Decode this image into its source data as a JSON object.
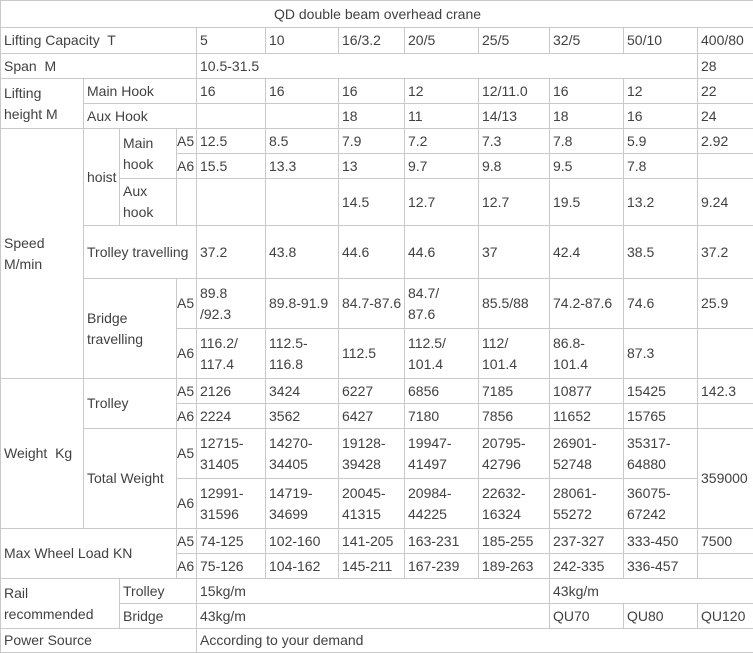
{
  "title": "QD double beam overhead crane",
  "colors": {
    "border": "#c9c9c9",
    "text": "#414141",
    "background": "#ffffff"
  },
  "grid": [
    [
      {
        "t": "QD double beam overhead crane",
        "cs": 12,
        "c": 1,
        "n": "table-title"
      }
    ],
    [
      {
        "t": "Lifting Capacity  T",
        "cs": 4,
        "n": "row-label-lifting-capacity"
      },
      {
        "t": "5",
        "n": "capacity-col-header"
      },
      {
        "t": "10",
        "n": "capacity-col-header"
      },
      {
        "t": "16/3.2",
        "n": "capacity-col-header"
      },
      {
        "t": "20/5",
        "n": "capacity-col-header"
      },
      {
        "t": "25/5",
        "n": "capacity-col-header"
      },
      {
        "t": "32/5",
        "n": "capacity-col-header"
      },
      {
        "t": "50/10",
        "n": "capacity-col-header"
      },
      {
        "t": "400/80",
        "n": "capacity-col-header"
      }
    ],
    [
      {
        "t": "Span  M",
        "cs": 4,
        "n": "row-label-span"
      },
      {
        "t": "10.5-31.5",
        "cs": 7,
        "n": "span-range-value"
      },
      {
        "t": "28",
        "n": "span-value"
      }
    ],
    [
      {
        "t": "Lifting height M",
        "rs": 2,
        "n": "row-label-lifting-height"
      },
      {
        "t": "Main Hook",
        "cs": 3,
        "n": "row-label-main-hook"
      },
      {
        "t": "16"
      },
      {
        "t": "16"
      },
      {
        "t": "16"
      },
      {
        "t": "12"
      },
      {
        "t": "12/11.0"
      },
      {
        "t": "16"
      },
      {
        "t": "12"
      },
      {
        "t": "22"
      }
    ],
    [
      {
        "t": "Aux Hook",
        "cs": 3,
        "n": "row-label-aux-hook"
      },
      {
        "t": ""
      },
      {
        "t": ""
      },
      {
        "t": "18"
      },
      {
        "t": "11"
      },
      {
        "t": "14/13"
      },
      {
        "t": "18"
      },
      {
        "t": "16"
      },
      {
        "t": "24"
      }
    ],
    [
      {
        "t": "Speed M/min",
        "rs": 6,
        "n": "row-label-speed"
      },
      {
        "t": "hoist",
        "rs": 3,
        "n": "row-label-hoist"
      },
      {
        "t": "Main hook",
        "rs": 2,
        "n": "row-label-hoist-main-hook"
      },
      {
        "t": "A5",
        "g": 1,
        "n": "grade-a5"
      },
      {
        "t": "12.5"
      },
      {
        "t": "8.5"
      },
      {
        "t": "7.9"
      },
      {
        "t": "7.2"
      },
      {
        "t": "7.3"
      },
      {
        "t": "7.8"
      },
      {
        "t": "5.9"
      },
      {
        "t": "2.92"
      }
    ],
    [
      {
        "t": "A6",
        "g": 1,
        "n": "grade-a6"
      },
      {
        "t": "15.5"
      },
      {
        "t": "13.3"
      },
      {
        "t": "13"
      },
      {
        "t": "9.7"
      },
      {
        "t": "9.8"
      },
      {
        "t": "9.5"
      },
      {
        "t": "7.8"
      },
      {
        "t": ""
      }
    ],
    [
      {
        "t": "Aux hook",
        "n": "row-label-hoist-aux-hook"
      },
      {
        "t": "",
        "g": 1
      },
      {
        "t": ""
      },
      {
        "t": ""
      },
      {
        "t": "14.5"
      },
      {
        "t": "12.7"
      },
      {
        "t": "12.7"
      },
      {
        "t": "19.5"
      },
      {
        "t": "13.2"
      },
      {
        "t": "9.24"
      }
    ],
    [
      {
        "t": "Trolley travelling",
        "cs": 3,
        "n": "row-label-trolley-travelling"
      },
      {
        "t": "37.2"
      },
      {
        "t": "43.8"
      },
      {
        "t": "44.6"
      },
      {
        "t": "44.6"
      },
      {
        "t": "37"
      },
      {
        "t": "42.4"
      },
      {
        "t": "38.5"
      },
      {
        "t": "37.2"
      }
    ],
    [
      {
        "t": "Bridge travelling",
        "cs": 2,
        "rs": 2,
        "n": "row-label-bridge-travelling"
      },
      {
        "t": "A5",
        "g": 1,
        "n": "grade-a5"
      },
      {
        "t": "89.8\n/92.3"
      },
      {
        "t": "89.8-91.9"
      },
      {
        "t": "84.7-87.6"
      },
      {
        "t": "84.7/\n87.6"
      },
      {
        "t": "85.5/88"
      },
      {
        "t": "74.2-87.6"
      },
      {
        "t": "74.6"
      },
      {
        "t": "25.9"
      }
    ],
    [
      {
        "t": "A6",
        "g": 1,
        "n": "grade-a6"
      },
      {
        "t": "116.2/\n117.4"
      },
      {
        "t": "112.5-\n116.8"
      },
      {
        "t": "112.5"
      },
      {
        "t": "112.5/\n101.4"
      },
      {
        "t": "112/\n101.4"
      },
      {
        "t": "86.8-\n101.4"
      },
      {
        "t": "87.3"
      },
      {
        "t": ""
      }
    ],
    [
      {
        "t": "Weight  Kg",
        "rs": 4,
        "n": "row-label-weight"
      },
      {
        "t": "Trolley",
        "cs": 2,
        "rs": 2,
        "n": "row-label-weight-trolley"
      },
      {
        "t": "A5",
        "g": 1,
        "n": "grade-a5"
      },
      {
        "t": "2126"
      },
      {
        "t": "3424"
      },
      {
        "t": "6227"
      },
      {
        "t": "6856"
      },
      {
        "t": "7185"
      },
      {
        "t": "10877"
      },
      {
        "t": "15425"
      },
      {
        "t": "142.3"
      }
    ],
    [
      {
        "t": "A6",
        "g": 1,
        "n": "grade-a6"
      },
      {
        "t": "2224"
      },
      {
        "t": "3562"
      },
      {
        "t": "6427"
      },
      {
        "t": "7180"
      },
      {
        "t": "7856"
      },
      {
        "t": "11652"
      },
      {
        "t": "15765"
      },
      {
        "t": ""
      }
    ],
    [
      {
        "t": "Total Weight",
        "cs": 2,
        "rs": 2,
        "n": "row-label-total-weight"
      },
      {
        "t": "A5",
        "g": 1,
        "n": "grade-a5"
      },
      {
        "t": "12715-\n31405"
      },
      {
        "t": "14270-\n34405"
      },
      {
        "t": "19128-\n39428"
      },
      {
        "t": "19947-\n41497"
      },
      {
        "t": "20795-\n42796"
      },
      {
        "t": "26901-\n52748"
      },
      {
        "t": "35317-\n64880"
      },
      {
        "t": "359000",
        "rs": 2
      }
    ],
    [
      {
        "t": "A6",
        "g": 1,
        "n": "grade-a6"
      },
      {
        "t": "12991-\n31596"
      },
      {
        "t": "14719-\n34699"
      },
      {
        "t": "20045-\n41315"
      },
      {
        "t": "20984-\n44225"
      },
      {
        "t": "22632-\n16324"
      },
      {
        "t": "28061-\n55272"
      },
      {
        "t": "36075-\n67242"
      }
    ],
    [
      {
        "t": "Max Wheel Load KN",
        "cs": 3,
        "rs": 2,
        "n": "row-label-max-wheel-load"
      },
      {
        "t": "A5",
        "g": 1,
        "n": "grade-a5"
      },
      {
        "t": "74-125"
      },
      {
        "t": "102-160"
      },
      {
        "t": "141-205"
      },
      {
        "t": "163-231"
      },
      {
        "t": "185-255"
      },
      {
        "t": "237-327"
      },
      {
        "t": "333-450"
      },
      {
        "t": "7500"
      }
    ],
    [
      {
        "t": "A6",
        "g": 1,
        "n": "grade-a6"
      },
      {
        "t": "75-126"
      },
      {
        "t": "104-162"
      },
      {
        "t": "145-211"
      },
      {
        "t": "167-239"
      },
      {
        "t": "189-263"
      },
      {
        "t": "242-335"
      },
      {
        "t": "336-457"
      },
      {
        "t": ""
      }
    ],
    [
      {
        "t": "Rail recommended",
        "cs": 2,
        "rs": 2,
        "n": "row-label-rail-recommended"
      },
      {
        "t": "Trolley",
        "cs": 2,
        "n": "row-label-rail-trolley"
      },
      {
        "t": "15kg/m",
        "cs": 5,
        "n": "rail-trolley-value"
      },
      {
        "t": "43kg/m",
        "cs": 3,
        "n": "rail-trolley-value-right"
      }
    ],
    [
      {
        "t": "Bridge",
        "cs": 2,
        "n": "row-label-rail-bridge"
      },
      {
        "t": "43kg/m",
        "cs": 5,
        "n": "rail-bridge-value"
      },
      {
        "t": "QU70",
        "n": "rail-type-qu70"
      },
      {
        "t": "QU80",
        "n": "rail-type-qu80"
      },
      {
        "t": "QU120",
        "n": "rail-type-qu120"
      }
    ],
    [
      {
        "t": "Power Source",
        "cs": 4,
        "n": "row-label-power-source"
      },
      {
        "t": "According to your demand",
        "cs": 8,
        "n": "power-source-value"
      }
    ]
  ]
}
